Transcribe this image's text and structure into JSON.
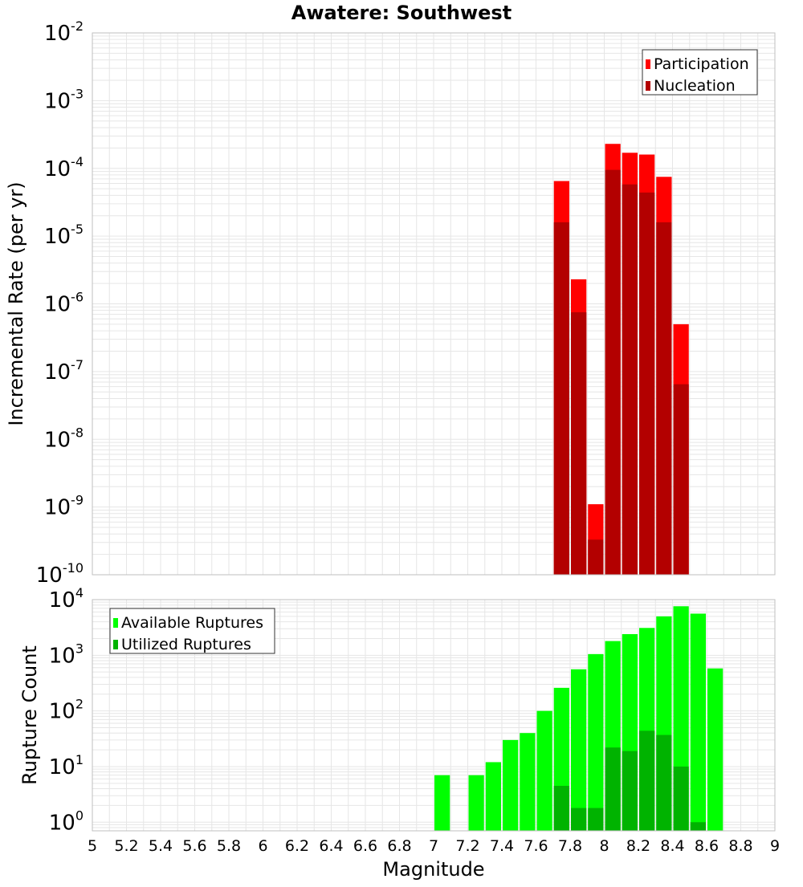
{
  "title": "Awatere: Southwest",
  "xlabel": "Magnitude",
  "colors": {
    "participation": "#ff0000",
    "nucleation": "#b30000",
    "available": "#00ff00",
    "utilized": "#00b300",
    "grid": "#e6e6e6",
    "frame": "#bfbfbf"
  },
  "chart_data": [
    {
      "type": "bar",
      "title": "Awatere: Southwest",
      "ylabel": "Incremental Rate (per yr)",
      "yscale": "log",
      "ylim": [
        1e-10,
        0.01
      ],
      "xlim": [
        5,
        9
      ],
      "bar_width": 0.1,
      "yticks": [
        {
          "base": "10",
          "exp": "-10"
        },
        {
          "base": "10",
          "exp": "-9"
        },
        {
          "base": "10",
          "exp": "-8"
        },
        {
          "base": "10",
          "exp": "-7"
        },
        {
          "base": "10",
          "exp": "-6"
        },
        {
          "base": "10",
          "exp": "-5"
        },
        {
          "base": "10",
          "exp": "-4"
        },
        {
          "base": "10",
          "exp": "-3"
        },
        {
          "base": "10",
          "exp": "-2"
        }
      ],
      "legend": {
        "position": "top-right"
      },
      "series": [
        {
          "name": "Participation",
          "x": [
            7.75,
            7.85,
            7.95,
            8.05,
            8.15,
            8.25,
            8.35,
            8.45
          ],
          "values": [
            6.5e-05,
            2.3e-06,
            1.1e-09,
            0.00023,
            0.00017,
            0.00016,
            7.5e-05,
            5e-07
          ]
        },
        {
          "name": "Nucleation",
          "x": [
            7.75,
            7.85,
            7.95,
            8.05,
            8.15,
            8.25,
            8.35,
            8.45
          ],
          "values": [
            1.6e-05,
            7.5e-07,
            3.3e-10,
            9.5e-05,
            5.8e-05,
            4.4e-05,
            1.6e-05,
            6.5e-08
          ]
        }
      ]
    },
    {
      "type": "bar",
      "ylabel": "Rupture Count",
      "xlabel": "Magnitude",
      "yscale": "log",
      "ylim": [
        0.7,
        10000
      ],
      "xlim": [
        5,
        9
      ],
      "bar_width": 0.1,
      "yticks": [
        {
          "base": "10",
          "exp": "0"
        },
        {
          "base": "10",
          "exp": "1"
        },
        {
          "base": "10",
          "exp": "2"
        },
        {
          "base": "10",
          "exp": "3"
        },
        {
          "base": "10",
          "exp": "4"
        }
      ],
      "xticks": [
        "5",
        "5.2",
        "5.4",
        "5.6",
        "5.8",
        "6",
        "6.2",
        "6.4",
        "6.6",
        "6.8",
        "7",
        "7.2",
        "7.4",
        "7.6",
        "7.8",
        "8",
        "8.2",
        "8.4",
        "8.6",
        "8.8",
        "9"
      ],
      "legend": {
        "position": "top-left"
      },
      "series": [
        {
          "name": "Available Ruptures",
          "x": [
            7.05,
            7.25,
            7.35,
            7.45,
            7.55,
            7.65,
            7.75,
            7.85,
            7.95,
            8.05,
            8.15,
            8.25,
            8.35,
            8.45,
            8.55,
            8.65
          ],
          "values": [
            7,
            7,
            12,
            30,
            40,
            100,
            260,
            560,
            1050,
            1800,
            2400,
            3100,
            5000,
            7600,
            5600,
            580
          ]
        },
        {
          "name": "Utilized Ruptures",
          "x": [
            7.75,
            7.85,
            7.95,
            8.05,
            8.15,
            8.25,
            8.35,
            8.45,
            8.55
          ],
          "values": [
            4.5,
            1.8,
            1.8,
            22,
            19,
            44,
            37,
            10,
            1
          ]
        }
      ]
    }
  ]
}
